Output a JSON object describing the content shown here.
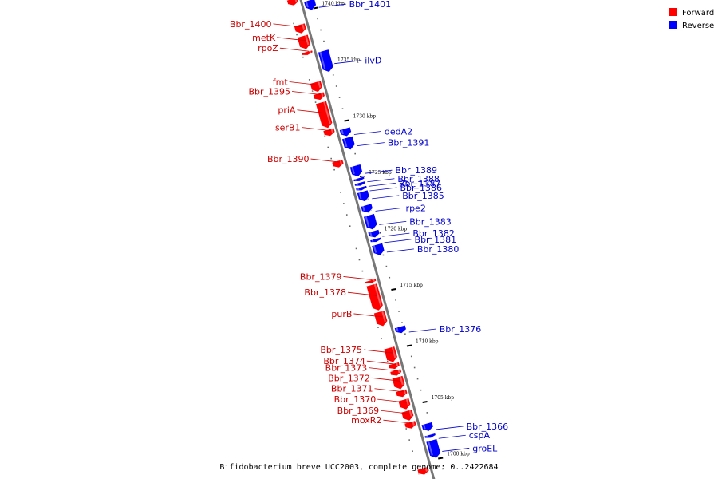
{
  "title": "Bifidobacterium breve UCC2003, complete genome: 0..2422684",
  "legend": [
    {
      "label": "Forward",
      "color": "#ff0000"
    },
    {
      "label": "Reverse",
      "color": "#0000ff"
    }
  ],
  "colors": {
    "forward": "#ff0000",
    "reverse": "#0000ff",
    "forward_label": "#cc0000",
    "reverse_label": "#0000cc",
    "backbone": "#777777"
  },
  "ticks": [
    {
      "pos_kbp": 1740,
      "label": "1740 kbp"
    },
    {
      "pos_kbp": 1735,
      "label": "1735 kbp"
    },
    {
      "pos_kbp": 1730,
      "label": "1730 kbp"
    },
    {
      "pos_kbp": 1725,
      "label": "1725 kbp"
    },
    {
      "pos_kbp": 1720,
      "label": "1720 kbp"
    },
    {
      "pos_kbp": 1715,
      "label": "1715 kbp"
    },
    {
      "pos_kbp": 1710,
      "label": "1710 kbp"
    },
    {
      "pos_kbp": 1705,
      "label": "1705 kbp"
    },
    {
      "pos_kbp": 1700,
      "label": "1700 kbp"
    }
  ],
  "genes": [
    {
      "name": "",
      "strand": "+",
      "start_kbp": 1740.9,
      "end_kbp": 1740.3
    },
    {
      "name": "Bbr_1401",
      "strand": "-",
      "start_kbp": 1740.4,
      "end_kbp": 1739.5
    },
    {
      "name": "Bbr_1400",
      "strand": "+",
      "start_kbp": 1738.6,
      "end_kbp": 1737.8
    },
    {
      "name": "metK",
      "strand": "+",
      "start_kbp": 1737.6,
      "end_kbp": 1736.4
    },
    {
      "name": "rpoZ",
      "strand": "+",
      "start_kbp": 1736.2,
      "end_kbp": 1735.9
    },
    {
      "name": "ilvD",
      "strand": "-",
      "start_kbp": 1735.9,
      "end_kbp": 1734.0
    },
    {
      "name": "fmt",
      "strand": "+",
      "start_kbp": 1733.5,
      "end_kbp": 1732.6
    },
    {
      "name": "Bbr_1395",
      "strand": "+",
      "start_kbp": 1732.5,
      "end_kbp": 1731.9
    },
    {
      "name": "priA",
      "strand": "+",
      "start_kbp": 1731.7,
      "end_kbp": 1729.4
    },
    {
      "name": "serB1",
      "strand": "+",
      "start_kbp": 1729.3,
      "end_kbp": 1728.7
    },
    {
      "name": "dedA2",
      "strand": "-",
      "start_kbp": 1729.0,
      "end_kbp": 1728.3
    },
    {
      "name": "Bbr_1391",
      "strand": "-",
      "start_kbp": 1728.2,
      "end_kbp": 1727.1
    },
    {
      "name": "Bbr_1390",
      "strand": "+",
      "start_kbp": 1726.5,
      "end_kbp": 1725.9
    },
    {
      "name": "Bbr_1389",
      "strand": "-",
      "start_kbp": 1725.7,
      "end_kbp": 1724.7
    },
    {
      "name": "Bbr_1388",
      "strand": "-",
      "start_kbp": 1724.6,
      "end_kbp": 1724.3
    },
    {
      "name": "Bbr_1387",
      "strand": "-",
      "start_kbp": 1724.2,
      "end_kbp": 1723.9
    },
    {
      "name": "Bbr_1386",
      "strand": "-",
      "start_kbp": 1723.8,
      "end_kbp": 1723.5
    },
    {
      "name": "Bbr_1385",
      "strand": "-",
      "start_kbp": 1723.4,
      "end_kbp": 1722.5
    },
    {
      "name": "rpe2",
      "strand": "-",
      "start_kbp": 1722.2,
      "end_kbp": 1721.5
    },
    {
      "name": "Bbr_1383",
      "strand": "-",
      "start_kbp": 1721.3,
      "end_kbp": 1720.0
    },
    {
      "name": "Bbr_1382",
      "strand": "-",
      "start_kbp": 1719.9,
      "end_kbp": 1719.3
    },
    {
      "name": "Bbr_1381",
      "strand": "-",
      "start_kbp": 1719.2,
      "end_kbp": 1718.9
    },
    {
      "name": "Bbr_1380",
      "strand": "-",
      "start_kbp": 1718.7,
      "end_kbp": 1717.7
    },
    {
      "name": "Bbr_1379",
      "strand": "+",
      "start_kbp": 1715.9,
      "end_kbp": 1715.6
    },
    {
      "name": "Bbr_1378",
      "strand": "+",
      "start_kbp": 1715.5,
      "end_kbp": 1713.2
    },
    {
      "name": "purB",
      "strand": "+",
      "start_kbp": 1713.1,
      "end_kbp": 1711.8
    },
    {
      "name": "Bbr_1376",
      "strand": "-",
      "start_kbp": 1711.4,
      "end_kbp": 1710.8
    },
    {
      "name": "Bbr_1375",
      "strand": "+",
      "start_kbp": 1709.9,
      "end_kbp": 1708.6
    },
    {
      "name": "Bbr_1374",
      "strand": "+",
      "start_kbp": 1708.5,
      "end_kbp": 1708.0
    },
    {
      "name": "Bbr_1373",
      "strand": "+",
      "start_kbp": 1707.9,
      "end_kbp": 1707.4
    },
    {
      "name": "Bbr_1372",
      "strand": "+",
      "start_kbp": 1707.3,
      "end_kbp": 1706.2
    },
    {
      "name": "Bbr_1371",
      "strand": "+",
      "start_kbp": 1706.1,
      "end_kbp": 1705.5
    },
    {
      "name": "Bbr_1370",
      "strand": "+",
      "start_kbp": 1705.3,
      "end_kbp": 1704.4
    },
    {
      "name": "Bbr_1369",
      "strand": "+",
      "start_kbp": 1704.3,
      "end_kbp": 1703.4
    },
    {
      "name": "moxR2",
      "strand": "+",
      "start_kbp": 1703.3,
      "end_kbp": 1702.7
    },
    {
      "name": "Bbr_1366",
      "strand": "-",
      "start_kbp": 1702.8,
      "end_kbp": 1702.1
    },
    {
      "name": "cspA",
      "strand": "-",
      "start_kbp": 1701.8,
      "end_kbp": 1701.5
    },
    {
      "name": "groEL",
      "strand": "-",
      "start_kbp": 1701.3,
      "end_kbp": 1699.7
    },
    {
      "name": "",
      "strand": "+",
      "start_kbp": 1699.2,
      "end_kbp": 1698.6
    }
  ]
}
